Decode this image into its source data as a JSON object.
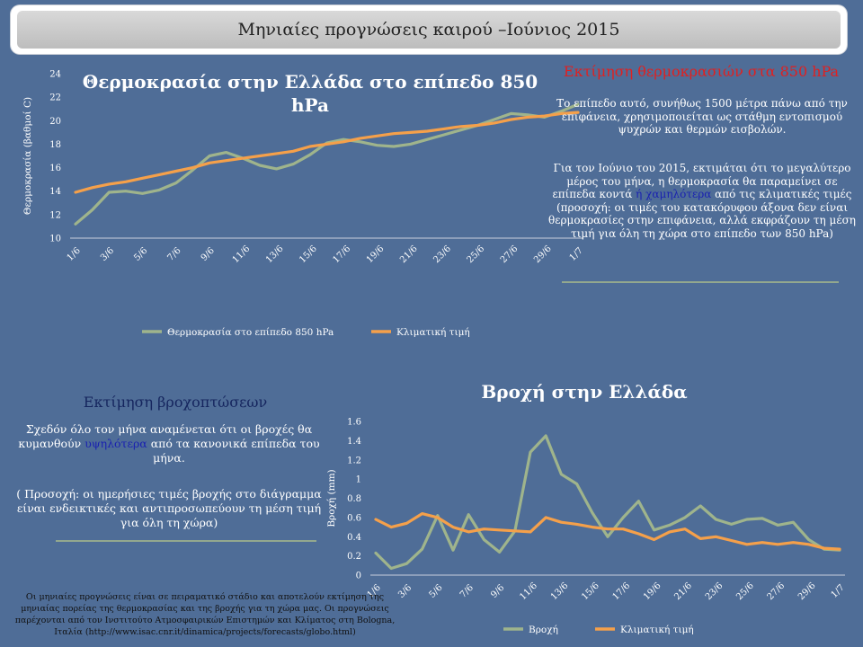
{
  "banner": {
    "title": "Μηνιαίες προγνώσεις καιρού –Ιούνιος 2015"
  },
  "temperature": {
    "note_title": "Εκτίμηση θερμοκρασιών στα 850 hPa",
    "note_p1": "Το επίπεδο αυτό, συνήθως 1500 μέτρα πάνω από την επιφάνεια, χρησιμοποιείται ως στάθμη εντοπισμού ψυχρών και θερμών εισβολών.",
    "note_p2_a": "Για τον Ιούνιο του 2015, εκτιμάται ότι το μεγαλύτερο μέρος του μήνα, η θερμοκρασία θα παραμείνει σε επίπεδα κοντά ",
    "note_p2_hl": "ή χαμηλότερα",
    "note_p2_b": " από τις κλιματικές τιμές",
    "note_p2_c": "(προσοχή: οι τιμές του κατακόρυφου άξονα δεν είναι θερμοκρασίες στην επιφάνεια, αλλά εκφράζουν τη μέση τιμή για όλη τη χώρα στο επίπεδο των 850 hPa)"
  },
  "rain": {
    "note_title": "Εκτίμηση βροχοπτώσεων",
    "note_p1_a": "Σχεδόν όλο τον μήνα αναμένεται ότι οι βροχές θα κυμανθούν ",
    "note_p1_hl": "υψηλότερα",
    "note_p1_b": " από τα κανονικά επίπεδα του μήνα.",
    "note_p2": "( Προσοχή: οι ημερήσιες τιμές βροχής στο διάγραμμα είναι ενδεικτικές και αντιπροσωπεύουν τη μέση τιμή για όλη τη χώρα)"
  },
  "footer": "Οι μηνιαίες προγνώσεις είναι σε πειραματικό στάδιο και αποτελούν εκτίμηση της μηνιαίας πορείας της θερμοκρασίας και της βροχής για τη χώρα μας. Οι προγνώσεις παρέχονται από τον Ινστιτούτο Ατμοσφαιρικών Επιστημών και Κλίματος στη Bologna, Ιταλία (http://www.isac.cnr.it/dinamica/projects/forecasts/globo.html)",
  "colors": {
    "series_green": "#9fb48c",
    "series_orange": "#f5a04a"
  },
  "chart_data": [
    {
      "type": "line",
      "title": "Θερμοκρασία στην Ελλάδα στο επίπεδο 850 hPa",
      "xlabel": "",
      "ylabel": "Θερμοκρασία (βαθμοί C)",
      "ylim": [
        10,
        24
      ],
      "yticks": [
        10,
        12,
        14,
        16,
        18,
        20,
        22,
        24
      ],
      "xtick_labels": [
        "1/6",
        "3/6",
        "5/6",
        "7/6",
        "9/6",
        "11/6",
        "13/6",
        "15/6",
        "17/6",
        "19/6",
        "21/6",
        "23/6",
        "25/6",
        "27/6",
        "29/6",
        "1/7"
      ],
      "grid": false,
      "legend": "bottom",
      "series": [
        {
          "name": "Θερμοκρασία στο επίπεδο 850 hPa",
          "color": "#9fb48c",
          "values": [
            11.2,
            12.4,
            13.9,
            14.0,
            13.8,
            14.1,
            14.7,
            15.8,
            17.0,
            17.3,
            16.8,
            16.2,
            15.9,
            16.3,
            17.1,
            18.1,
            18.4,
            18.2,
            17.9,
            17.8,
            18.0,
            18.4,
            18.8,
            19.2,
            19.6,
            20.1,
            20.6,
            20.5,
            20.3,
            20.8,
            21.4
          ]
        },
        {
          "name": "Κλιματική τιμή",
          "color": "#f5a04a",
          "values": [
            13.9,
            14.3,
            14.6,
            14.8,
            15.1,
            15.4,
            15.7,
            16.0,
            16.4,
            16.6,
            16.8,
            17.0,
            17.2,
            17.4,
            17.8,
            18.0,
            18.2,
            18.5,
            18.7,
            18.9,
            19.0,
            19.1,
            19.3,
            19.5,
            19.6,
            19.8,
            20.1,
            20.3,
            20.4,
            20.6,
            20.7
          ]
        }
      ]
    },
    {
      "type": "line",
      "title": "Βροχή στην Ελλάδα",
      "xlabel": "",
      "ylabel": "Βροχή (mm)",
      "ylim": [
        0,
        1.6
      ],
      "yticks": [
        0,
        0.2,
        0.4,
        0.6,
        0.8,
        1,
        1.2,
        1.4,
        1.6
      ],
      "ytick_labels": [
        "0",
        "0.2",
        "0.4",
        "0.6",
        "0.8",
        "1",
        "1.2",
        "1.4",
        "1.6"
      ],
      "xtick_labels": [
        "1/6",
        "3/6",
        "5/6",
        "7/6",
        "9/6",
        "11/6",
        "13/6",
        "15/6",
        "17/6",
        "19/6",
        "21/6",
        "23/6",
        "25/6",
        "27/6",
        "29/6",
        "1/7"
      ],
      "grid": false,
      "legend": "bottom",
      "series": [
        {
          "name": "Βροχή",
          "color": "#9fb48c",
          "values": [
            0.23,
            0.07,
            0.12,
            0.27,
            0.62,
            0.26,
            0.63,
            0.37,
            0.24,
            0.46,
            1.28,
            1.45,
            1.05,
            0.95,
            0.65,
            0.4,
            0.6,
            0.77,
            0.47,
            0.52,
            0.6,
            0.72,
            0.58,
            0.53,
            0.58,
            0.59,
            0.52,
            0.55,
            0.37,
            0.27,
            0.26
          ]
        },
        {
          "name": "Κλιματική τιμή",
          "color": "#f5a04a",
          "values": [
            0.58,
            0.5,
            0.54,
            0.64,
            0.6,
            0.5,
            0.45,
            0.48,
            0.47,
            0.46,
            0.45,
            0.6,
            0.55,
            0.53,
            0.5,
            0.48,
            0.48,
            0.43,
            0.37,
            0.45,
            0.48,
            0.38,
            0.4,
            0.36,
            0.32,
            0.34,
            0.32,
            0.34,
            0.32,
            0.28,
            0.27
          ]
        }
      ]
    }
  ]
}
